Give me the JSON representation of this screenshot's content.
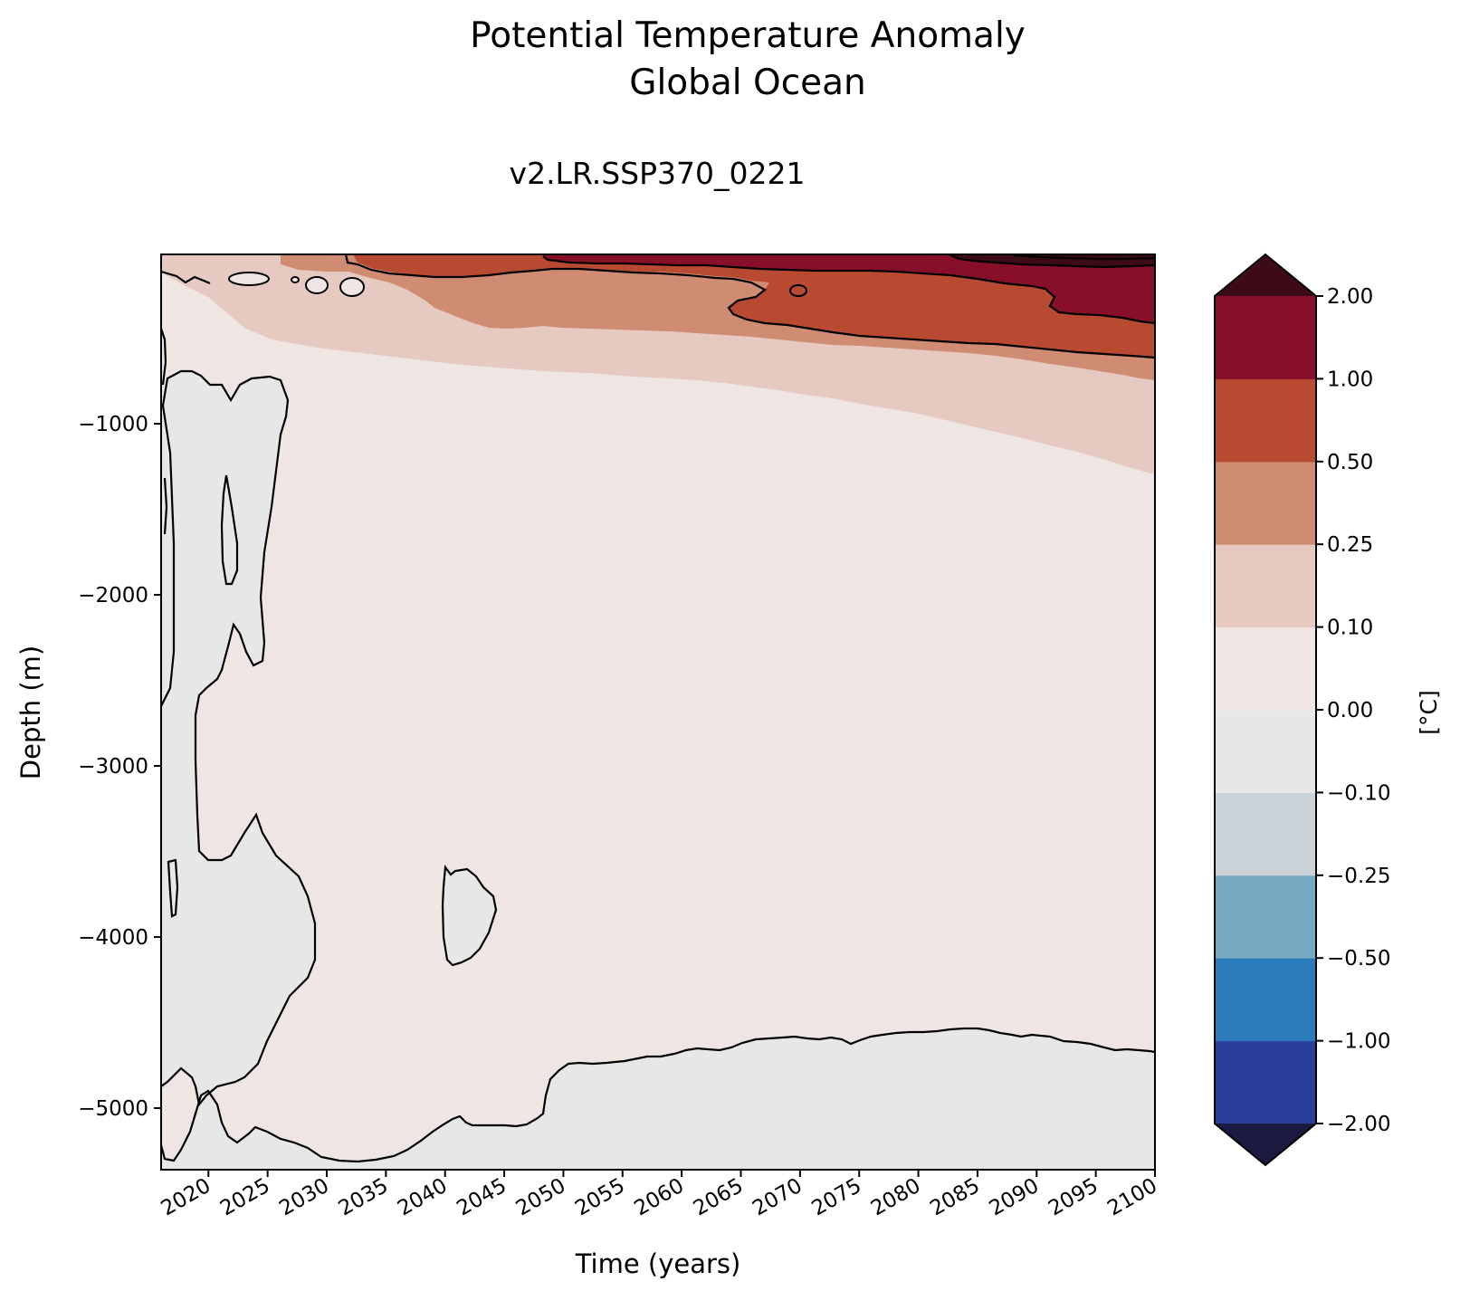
{
  "chart_data": {
    "type": "heatmap",
    "title_line1": "Potential Temperature Anomaly",
    "title_line2": "Global Ocean",
    "subtitle": "v2.LR.SSP370_0221",
    "xlabel": "Time (years)",
    "ylabel": "Depth (m)",
    "xlim": [
      2016,
      2100
    ],
    "ylim": [
      -5360,
      -10
    ],
    "x_ticks": [
      "2020",
      "2025",
      "2030",
      "2035",
      "2040",
      "2045",
      "2050",
      "2055",
      "2060",
      "2065",
      "2070",
      "2075",
      "2080",
      "2085",
      "2090",
      "2095",
      "2100"
    ],
    "x_tick_values": [
      2020,
      2025,
      2030,
      2035,
      2040,
      2045,
      2050,
      2055,
      2060,
      2065,
      2070,
      2075,
      2080,
      2085,
      2090,
      2095,
      2100
    ],
    "y_ticks": [
      "−1000",
      "−2000",
      "−3000",
      "−4000",
      "−5000"
    ],
    "y_tick_values": [
      -1000,
      -2000,
      -3000,
      -4000,
      -5000
    ],
    "colorbar": {
      "label": "[°C]",
      "levels": [
        "−2.00",
        "−1.00",
        "−0.50",
        "−0.25",
        "−0.10",
        "0.00",
        "0.10",
        "0.25",
        "0.50",
        "1.00",
        "2.00"
      ],
      "colors": [
        "#293f9b",
        "#2b7bbb",
        "#77a9c0",
        "#cbd3d8",
        "#e8e7e8",
        "#efe6e4",
        "#e6c9c1",
        "#d08b73",
        "#b94a32",
        "#870f29"
      ],
      "extend_low_color": "#1b1b42",
      "extend_high_color": "#3d0b16"
    },
    "regions": [
      {
        "name": "0.00 to 0.10",
        "color": "#efe6e4",
        "description": "background warming over most of the deep ocean"
      },
      {
        "name": "-0.10 to 0.00",
        "color": "#e8e7e8",
        "description": "slight cooling in early years and below about 4600 m"
      },
      {
        "name": "0.10 to 0.25",
        "color": "#e6c9c1",
        "description": "upper ocean, deepening to about 1300 m by 2100"
      },
      {
        "name": "0.25 to 0.50",
        "color": "#d08b73",
        "description": "upper ocean warming, deepening to about 850 m by 2100"
      },
      {
        "name": "0.50 to 1.00",
        "color": "#b94a32",
        "description": "upper ocean warming after 2035"
      },
      {
        "name": "1.00 to 2.00",
        "color": "#870f29",
        "description": "near-surface warming after 2050"
      },
      {
        "name": "> 2.00",
        "color": "#3d0b16",
        "description": "surface layer near 2085-2100"
      }
    ]
  }
}
